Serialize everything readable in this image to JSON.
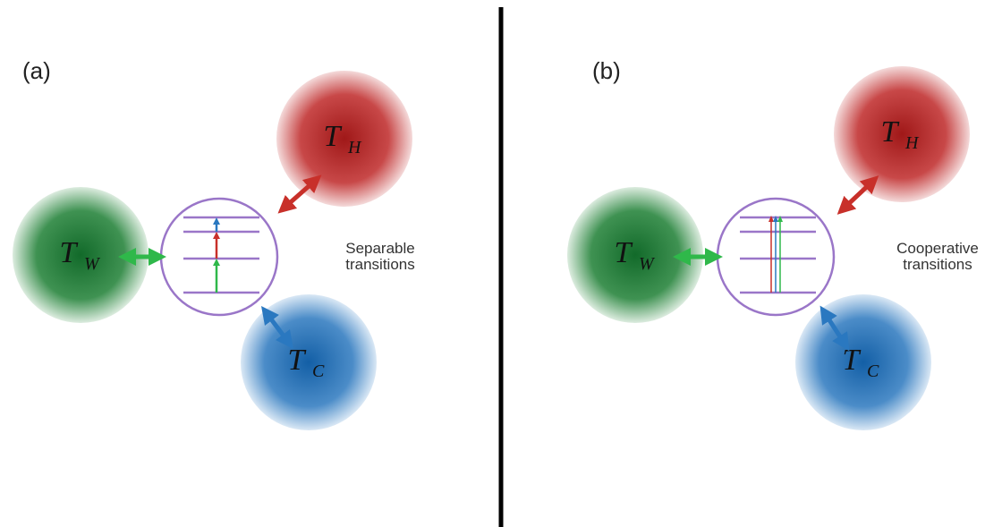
{
  "panels": [
    {
      "label": "(a)",
      "caption": [
        "Separable",
        "transitions"
      ],
      "hot": {
        "symbol": "T",
        "subscript": "H"
      },
      "work": {
        "symbol": "T",
        "subscript": "W"
      },
      "cold": {
        "symbol": "T",
        "subscript": "C"
      }
    },
    {
      "label": "(b)",
      "caption": [
        "Cooperative",
        "transitions"
      ],
      "hot": {
        "symbol": "T",
        "subscript": "H"
      },
      "work": {
        "symbol": "T",
        "subscript": "W"
      },
      "cold": {
        "symbol": "T",
        "subscript": "C"
      }
    }
  ]
}
